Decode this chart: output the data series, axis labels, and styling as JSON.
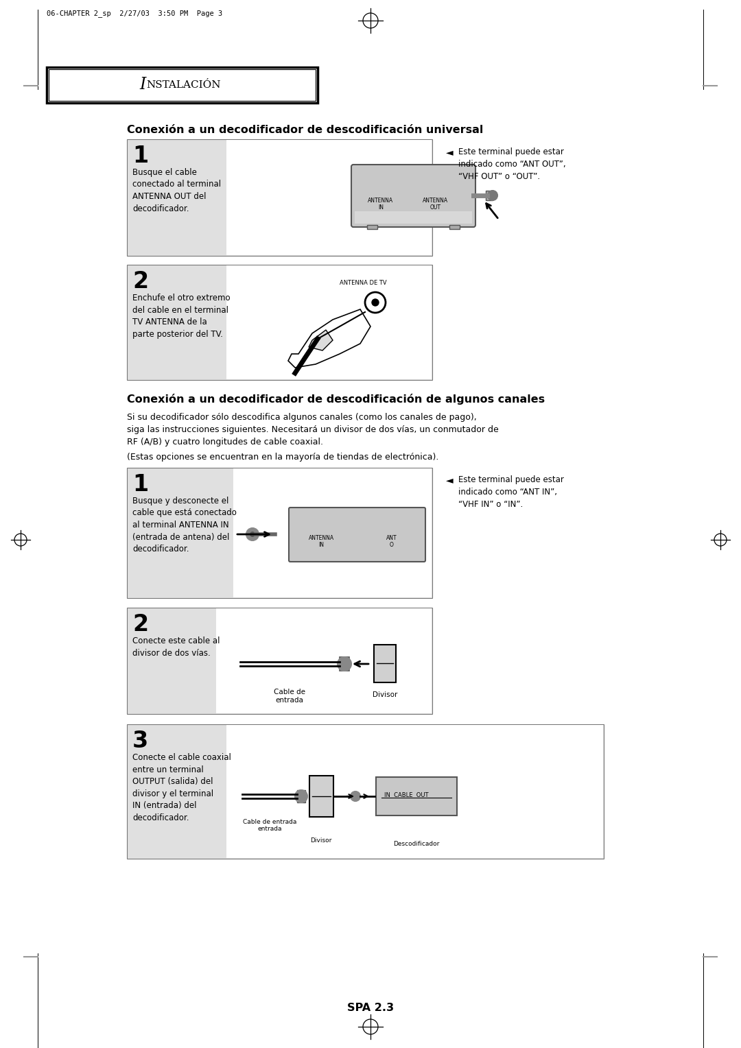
{
  "bg_color": "#ffffff",
  "header_text": "06-CHAPTER 2_sp  2/27/03  3:50 PM  Page 3",
  "section_title_I": "I",
  "section_title_rest": "NSTALACIÓN",
  "title1": "Conexión a un decodificador de descodificación universal",
  "title2": "Conexión a un decodificador de descodificación de algunos canales",
  "box_bg": "#e0e0e0",
  "step1_num": "1",
  "step1_text": "Busque el cable\nconectado al terminal\nANTENNA OUT del\ndecodificador.",
  "step1_note": "Este terminal puede estar\nindicado como “ANT OUT”,\n“VHF OUT” o “OUT”.",
  "step2_num": "2",
  "step2_text": "Enchufe el otro extremo\ndel cable en el terminal\nTV ANTENNA de la\nparte posterior del TV.",
  "step3_num": "1",
  "step3_text": "Busque y desconecte el\ncable que está conectado\nal terminal ANTENNA IN\n(entrada de antena) del\ndecodificador.",
  "step3_note": "Este terminal puede estar\nindicado como “ANT IN”,\n“VHF IN” o “IN”.",
  "step4_num": "2",
  "step4_text": "Conecte este cable al\ndivisor de dos vías.",
  "step5_num": "3",
  "step5_text": "Conecte el cable coaxial\nentre un terminal\nOUTPUT (salida) del\ndivisor y el terminal\nIN (entrada) del\ndecodificador.",
  "para_text1": "Si su decodificador sólo descodifica algunos canales (como los canales de pago),",
  "para_text2": "siga las instrucciones siguientes. Necesitará un divisor de dos vías, un conmutador de",
  "para_text3": "RF (A/B) y cuatro longitudes de cable coaxial.",
  "para_text4": "(Estas opciones se encuentran en la mayoría de tiendas de electrónica).",
  "footer": "SPA 2.3"
}
